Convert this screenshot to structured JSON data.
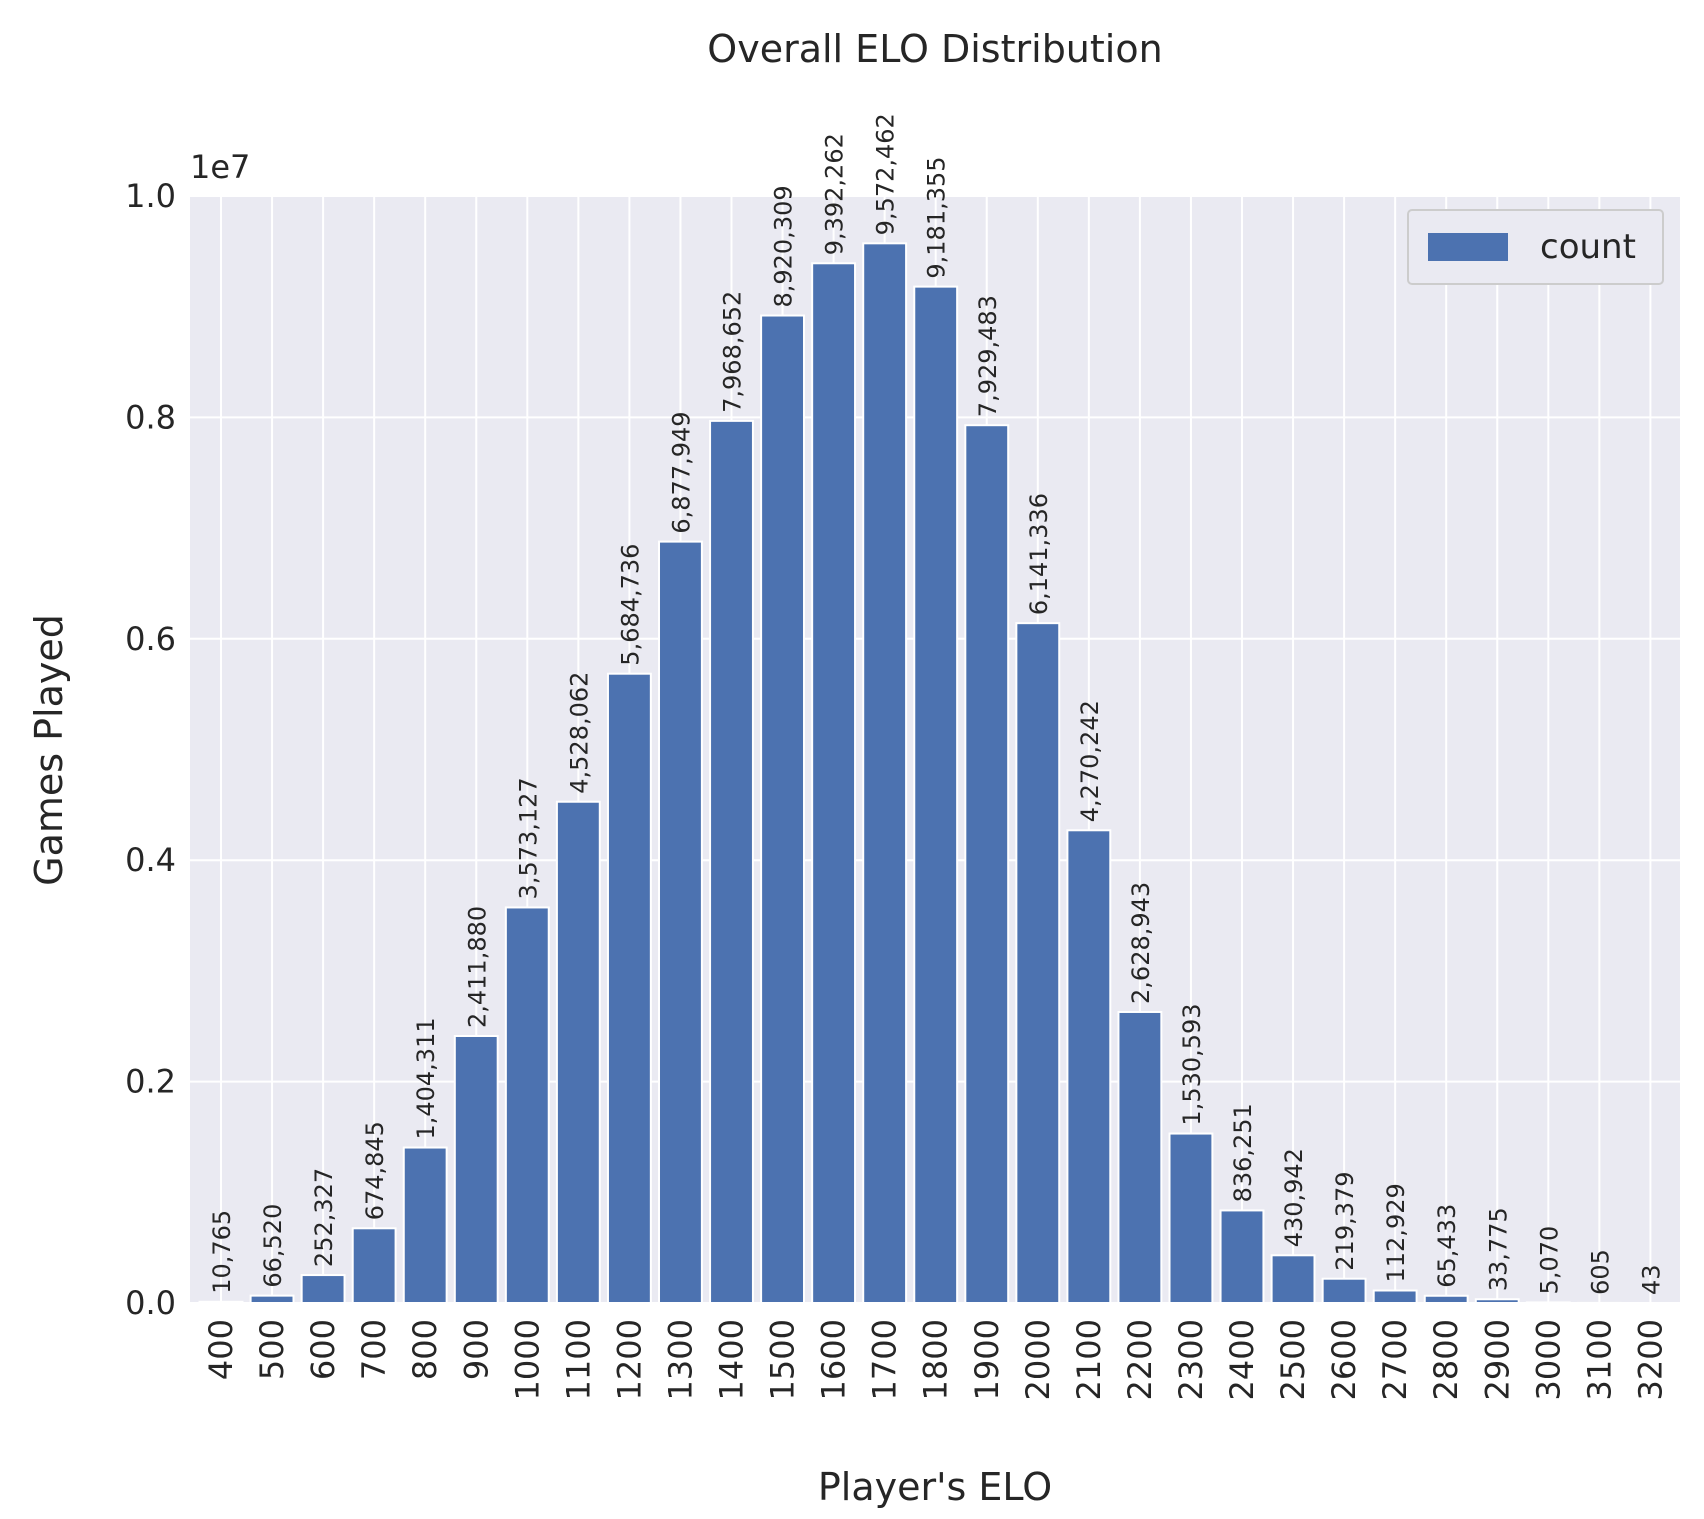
{
  "chart_data": {
    "type": "bar",
    "title": "Overall ELO Distribution",
    "xlabel": "Player's ELO",
    "ylabel": "Games Played",
    "y_offset_label": "1e7",
    "ylim": [
      0,
      10000000
    ],
    "y_ticks": [
      0,
      2000000,
      4000000,
      6000000,
      8000000,
      10000000
    ],
    "y_tick_labels": [
      "0.0",
      "0.2",
      "0.4",
      "0.6",
      "0.8",
      "1.0"
    ],
    "grid": true,
    "legend_position": "top-right",
    "categories": [
      "400",
      "500",
      "600",
      "700",
      "800",
      "900",
      "1000",
      "1100",
      "1200",
      "1300",
      "1400",
      "1500",
      "1600",
      "1700",
      "1800",
      "1900",
      "2000",
      "2100",
      "2200",
      "2300",
      "2400",
      "2500",
      "2600",
      "2700",
      "2800",
      "2900",
      "3000",
      "3100",
      "3200"
    ],
    "series": [
      {
        "name": "count",
        "color": "#4c72b0",
        "values": [
          10765,
          66520,
          252327,
          674845,
          1404311,
          2411880,
          3573127,
          4528062,
          5684736,
          6877949,
          7968652,
          8920309,
          9392262,
          9572462,
          9181355,
          7929483,
          6141336,
          4270242,
          2628943,
          1530593,
          836251,
          430942,
          219379,
          112929,
          65433,
          33775,
          5070,
          605,
          43
        ],
        "labels": [
          "10,765",
          "66,520",
          "252,327",
          "674,845",
          "1,404,311",
          "2,411,880",
          "3,573,127",
          "4,528,062",
          "5,684,736",
          "6,877,949",
          "7,968,652",
          "8,920,309",
          "9,392,262",
          "9,572,462",
          "9,181,355",
          "7,929,483",
          "6,141,336",
          "4,270,242",
          "2,628,943",
          "1,530,593",
          "836,251",
          "430,942",
          "219,379",
          "112,929",
          "65,433",
          "33,775",
          "5,070",
          "605",
          "43"
        ]
      }
    ],
    "plot_bg": "#eaeaf2",
    "grid_color": "#ffffff",
    "text_color": "#262626"
  }
}
